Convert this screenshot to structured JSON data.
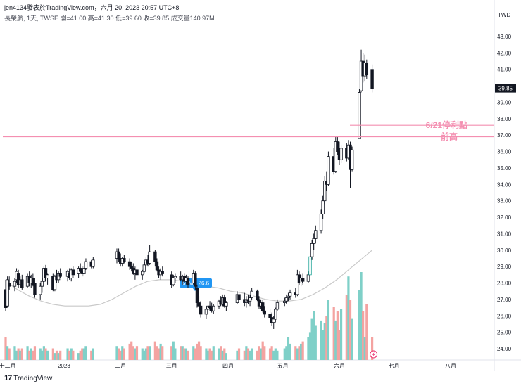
{
  "header": {
    "line1": "jen4134發表於TradingView.com，六月 20, 2023 20:57 UTC+8",
    "line2": "長榮航, 1天, TWSE  開=41.00  高=41.30  低=39.60  收=39.85  成交量140.97M"
  },
  "footer": {
    "logo_text": "TradingView",
    "logo_mark": "17"
  },
  "colors": {
    "up": "#26a69a",
    "down": "#ef5350",
    "bull_body": "#ffffff",
    "bear_body": "#131722",
    "ma": "#c9c9c9",
    "annotation": "#f48fb1",
    "ma_badge": "#2196f3"
  },
  "chart_data": {
    "type": "candlestick",
    "currency": "TWD",
    "y_axis": {
      "ticks": [
        "43.00",
        "42.00",
        "41.00",
        "40.00",
        "39.00",
        "38.00",
        "37.00",
        "36.00",
        "35.00",
        "34.00",
        "33.00",
        "32.00",
        "31.00",
        "30.00",
        "29.00",
        "28.00",
        "27.00",
        "26.00",
        "25.00",
        "24.00"
      ],
      "range": [
        23.6,
        43.6
      ]
    },
    "x_axis": {
      "ticks": [
        "十二月",
        "2023",
        "二月",
        "三月",
        "四月",
        "五月",
        "六月",
        "七月",
        "八月"
      ]
    },
    "last_price": "39.85",
    "ma": {
      "label": "60MA 26.6",
      "values": [
        28.1,
        27.6,
        27.2,
        26.9,
        26.7,
        26.6,
        26.6,
        26.6,
        26.7,
        27.0,
        27.4,
        27.8,
        28.1,
        28.2,
        28.2,
        28.1,
        28.0,
        27.8,
        27.7,
        27.5,
        27.4,
        27.2,
        27.0,
        26.9,
        26.9,
        27.0,
        27.3,
        27.7,
        28.2,
        28.8,
        29.4,
        30.0
      ]
    },
    "candles": [
      {
        "t": "2022-11-30",
        "o": 27.6,
        "h": 28.2,
        "l": 26.3,
        "c": 26.5
      },
      {
        "t": "2022-12-01",
        "o": 26.6,
        "h": 28.4,
        "l": 26.5,
        "c": 28.2
      },
      {
        "t": "2022-12-02",
        "o": 28.0,
        "h": 28.4,
        "l": 27.6,
        "c": 27.8
      },
      {
        "t": "2022-12-05",
        "o": 27.8,
        "h": 28.3,
        "l": 27.5,
        "c": 28.1
      },
      {
        "t": "2022-12-06",
        "o": 28.2,
        "h": 28.9,
        "l": 28.0,
        "c": 28.7
      },
      {
        "t": "2022-12-07",
        "o": 28.6,
        "h": 28.8,
        "l": 27.7,
        "c": 27.9
      },
      {
        "t": "2022-12-08",
        "o": 27.9,
        "h": 28.4,
        "l": 27.7,
        "c": 28.2
      },
      {
        "t": "2022-12-09",
        "o": 28.2,
        "h": 28.5,
        "l": 27.6,
        "c": 27.7
      },
      {
        "t": "2022-12-12",
        "o": 27.8,
        "h": 28.6,
        "l": 27.7,
        "c": 28.4
      },
      {
        "t": "2022-12-13",
        "o": 28.4,
        "h": 28.7,
        "l": 27.8,
        "c": 28.0
      },
      {
        "t": "2022-12-14",
        "o": 28.0,
        "h": 28.5,
        "l": 27.7,
        "c": 28.3
      },
      {
        "t": "2022-12-15",
        "o": 28.3,
        "h": 28.6,
        "l": 27.8,
        "c": 27.9
      },
      {
        "t": "2022-12-16",
        "o": 28.0,
        "h": 28.3,
        "l": 27.1,
        "c": 27.3
      },
      {
        "t": "2022-12-19",
        "o": 27.3,
        "h": 28.0,
        "l": 27.0,
        "c": 27.8
      },
      {
        "t": "2022-12-20",
        "o": 27.8,
        "h": 28.3,
        "l": 27.4,
        "c": 28.1
      },
      {
        "t": "2022-12-21",
        "o": 28.1,
        "h": 29.0,
        "l": 28.0,
        "c": 28.9
      },
      {
        "t": "2022-12-22",
        "o": 28.9,
        "h": 29.1,
        "l": 28.1,
        "c": 28.3
      },
      {
        "t": "2022-12-23",
        "o": 28.3,
        "h": 28.6,
        "l": 27.9,
        "c": 28.5
      },
      {
        "t": "2022-12-26",
        "o": 28.4,
        "h": 28.6,
        "l": 27.5,
        "c": 27.6
      },
      {
        "t": "2022-12-27",
        "o": 27.6,
        "h": 28.5,
        "l": 27.5,
        "c": 28.4
      },
      {
        "t": "2022-12-28",
        "o": 28.4,
        "h": 28.8,
        "l": 28.0,
        "c": 28.2
      },
      {
        "t": "2022-12-29",
        "o": 28.2,
        "h": 28.7,
        "l": 28.0,
        "c": 28.6
      },
      {
        "t": "2022-12-30",
        "o": 28.6,
        "h": 28.9,
        "l": 28.3,
        "c": 28.4
      },
      {
        "t": "2023-01-03",
        "o": 28.4,
        "h": 28.8,
        "l": 28.1,
        "c": 28.7
      },
      {
        "t": "2023-01-04",
        "o": 28.6,
        "h": 28.9,
        "l": 28.2,
        "c": 28.3
      },
      {
        "t": "2023-01-05",
        "o": 28.3,
        "h": 28.9,
        "l": 28.1,
        "c": 28.8
      },
      {
        "t": "2023-01-06",
        "o": 28.8,
        "h": 29.0,
        "l": 28.3,
        "c": 28.5
      },
      {
        "t": "2023-01-09",
        "o": 28.6,
        "h": 29.0,
        "l": 28.3,
        "c": 28.9
      },
      {
        "t": "2023-01-10",
        "o": 28.9,
        "h": 29.2,
        "l": 28.6,
        "c": 28.7
      },
      {
        "t": "2023-01-11",
        "o": 28.7,
        "h": 29.0,
        "l": 28.4,
        "c": 28.6
      },
      {
        "t": "2023-01-12",
        "o": 28.6,
        "h": 29.0,
        "l": 28.4,
        "c": 28.9
      },
      {
        "t": "2023-01-13",
        "o": 28.9,
        "h": 29.5,
        "l": 28.8,
        "c": 29.3
      },
      {
        "t": "2023-01-16",
        "o": 29.3,
        "h": 29.4,
        "l": 28.9,
        "c": 29.0
      },
      {
        "t": "2023-01-17",
        "o": 29.0,
        "h": 29.6,
        "l": 28.9,
        "c": 29.4
      },
      {
        "t": "2023-01-30",
        "o": 29.5,
        "h": 30.1,
        "l": 29.2,
        "c": 29.9
      },
      {
        "t": "2023-01-31",
        "o": 29.9,
        "h": 30.1,
        "l": 29.3,
        "c": 29.5
      },
      {
        "t": "2023-02-01",
        "o": 29.5,
        "h": 29.8,
        "l": 29.0,
        "c": 29.2
      },
      {
        "t": "2023-02-02",
        "o": 29.2,
        "h": 29.6,
        "l": 29.0,
        "c": 29.5
      },
      {
        "t": "2023-02-03",
        "o": 29.5,
        "h": 29.7,
        "l": 29.2,
        "c": 29.3
      },
      {
        "t": "2023-02-06",
        "o": 29.3,
        "h": 29.5,
        "l": 28.8,
        "c": 29.0
      },
      {
        "t": "2023-02-07",
        "o": 29.0,
        "h": 29.3,
        "l": 28.7,
        "c": 28.9
      },
      {
        "t": "2023-02-08",
        "o": 28.9,
        "h": 29.2,
        "l": 28.5,
        "c": 28.6
      },
      {
        "t": "2023-02-09",
        "o": 28.6,
        "h": 29.0,
        "l": 28.2,
        "c": 28.8
      },
      {
        "t": "2023-02-10",
        "o": 28.8,
        "h": 29.1,
        "l": 28.4,
        "c": 28.5
      },
      {
        "t": "2023-02-13",
        "o": 28.5,
        "h": 28.8,
        "l": 28.2,
        "c": 28.7
      },
      {
        "t": "2023-02-14",
        "o": 28.7,
        "h": 29.3,
        "l": 28.6,
        "c": 29.1
      },
      {
        "t": "2023-02-15",
        "o": 29.1,
        "h": 29.6,
        "l": 28.9,
        "c": 29.4
      },
      {
        "t": "2023-02-16",
        "o": 29.4,
        "h": 29.7,
        "l": 29.0,
        "c": 29.2
      },
      {
        "t": "2023-02-17",
        "o": 29.2,
        "h": 30.3,
        "l": 29.1,
        "c": 29.9
      },
      {
        "t": "2023-02-20",
        "o": 29.9,
        "h": 30.0,
        "l": 29.0,
        "c": 29.3
      },
      {
        "t": "2023-02-21",
        "o": 29.3,
        "h": 29.5,
        "l": 28.7,
        "c": 28.8
      },
      {
        "t": "2023-02-22",
        "o": 28.8,
        "h": 29.0,
        "l": 28.3,
        "c": 28.5
      },
      {
        "t": "2023-02-23",
        "o": 28.5,
        "h": 28.9,
        "l": 28.2,
        "c": 28.7
      },
      {
        "t": "2023-02-24",
        "o": 28.7,
        "h": 29.0,
        "l": 28.4,
        "c": 28.6
      },
      {
        "t": "2023-03-01",
        "o": 28.5,
        "h": 28.7,
        "l": 27.7,
        "c": 27.9
      },
      {
        "t": "2023-03-02",
        "o": 27.9,
        "h": 28.5,
        "l": 27.8,
        "c": 28.3
      },
      {
        "t": "2023-03-03",
        "o": 28.3,
        "h": 28.6,
        "l": 28.0,
        "c": 28.4
      },
      {
        "t": "2023-03-06",
        "o": 28.4,
        "h": 28.7,
        "l": 28.1,
        "c": 28.2
      },
      {
        "t": "2023-03-07",
        "o": 28.2,
        "h": 28.5,
        "l": 27.9,
        "c": 28.4
      },
      {
        "t": "2023-03-08",
        "o": 28.4,
        "h": 28.6,
        "l": 28.0,
        "c": 28.1
      },
      {
        "t": "2023-03-09",
        "o": 28.1,
        "h": 28.5,
        "l": 27.9,
        "c": 28.3
      },
      {
        "t": "2023-03-10",
        "o": 28.3,
        "h": 28.4,
        "l": 27.7,
        "c": 27.9
      },
      {
        "t": "2023-03-13",
        "o": 28.0,
        "h": 28.8,
        "l": 27.9,
        "c": 28.6
      },
      {
        "t": "2023-03-14",
        "o": 28.6,
        "h": 28.7,
        "l": 27.6,
        "c": 27.8
      },
      {
        "t": "2023-03-15",
        "o": 27.7,
        "h": 27.9,
        "l": 26.5,
        "c": 26.8
      },
      {
        "t": "2023-03-16",
        "o": 26.8,
        "h": 27.2,
        "l": 26.4,
        "c": 26.6
      },
      {
        "t": "2023-03-17",
        "o": 26.6,
        "h": 26.9,
        "l": 25.9,
        "c": 26.1
      },
      {
        "t": "2023-03-20",
        "o": 26.1,
        "h": 26.6,
        "l": 25.8,
        "c": 26.4
      },
      {
        "t": "2023-03-21",
        "o": 26.4,
        "h": 26.8,
        "l": 26.1,
        "c": 26.6
      },
      {
        "t": "2023-03-22",
        "o": 26.6,
        "h": 26.9,
        "l": 26.3,
        "c": 26.5
      },
      {
        "t": "2023-03-23",
        "o": 26.5,
        "h": 26.8,
        "l": 26.2,
        "c": 26.3
      },
      {
        "t": "2023-03-24",
        "o": 26.3,
        "h": 26.7,
        "l": 26.1,
        "c": 26.6
      },
      {
        "t": "2023-03-27",
        "o": 26.6,
        "h": 27.0,
        "l": 26.4,
        "c": 26.9
      },
      {
        "t": "2023-03-28",
        "o": 26.9,
        "h": 27.2,
        "l": 26.6,
        "c": 26.7
      },
      {
        "t": "2023-03-29",
        "o": 26.7,
        "h": 27.3,
        "l": 26.6,
        "c": 27.1
      },
      {
        "t": "2023-03-30",
        "o": 27.1,
        "h": 27.3,
        "l": 26.5,
        "c": 26.6
      },
      {
        "t": "2023-03-31",
        "o": 26.6,
        "h": 26.9,
        "l": 26.3,
        "c": 26.8
      },
      {
        "t": "2023-04-06",
        "o": 26.8,
        "h": 27.5,
        "l": 26.7,
        "c": 27.3
      },
      {
        "t": "2023-04-07",
        "o": 27.3,
        "h": 27.6,
        "l": 26.9,
        "c": 27.0
      },
      {
        "t": "2023-04-10",
        "o": 27.0,
        "h": 27.4,
        "l": 26.6,
        "c": 26.8
      },
      {
        "t": "2023-04-11",
        "o": 26.8,
        "h": 27.2,
        "l": 26.5,
        "c": 27.0
      },
      {
        "t": "2023-04-12",
        "o": 27.0,
        "h": 27.3,
        "l": 26.7,
        "c": 26.9
      },
      {
        "t": "2023-04-13",
        "o": 26.9,
        "h": 27.3,
        "l": 26.6,
        "c": 27.1
      },
      {
        "t": "2023-04-14",
        "o": 27.1,
        "h": 27.7,
        "l": 27.0,
        "c": 27.5
      },
      {
        "t": "2023-04-17",
        "o": 27.5,
        "h": 27.6,
        "l": 26.9,
        "c": 27.0
      },
      {
        "t": "2023-04-18",
        "o": 27.0,
        "h": 27.2,
        "l": 26.4,
        "c": 26.6
      },
      {
        "t": "2023-04-19",
        "o": 26.6,
        "h": 27.0,
        "l": 26.4,
        "c": 26.8
      },
      {
        "t": "2023-04-20",
        "o": 26.8,
        "h": 27.0,
        "l": 26.2,
        "c": 26.3
      },
      {
        "t": "2023-04-21",
        "o": 26.3,
        "h": 26.6,
        "l": 25.9,
        "c": 26.1
      },
      {
        "t": "2023-04-24",
        "o": 26.1,
        "h": 26.4,
        "l": 25.7,
        "c": 25.9
      },
      {
        "t": "2023-04-25",
        "o": 25.9,
        "h": 26.2,
        "l": 25.4,
        "c": 25.6
      },
      {
        "t": "2023-04-26",
        "o": 25.6,
        "h": 26.0,
        "l": 25.2,
        "c": 25.8
      },
      {
        "t": "2023-04-27",
        "o": 25.8,
        "h": 26.5,
        "l": 25.6,
        "c": 26.4
      },
      {
        "t": "2023-04-28",
        "o": 26.4,
        "h": 27.0,
        "l": 26.3,
        "c": 26.8
      },
      {
        "t": "2023-05-02",
        "o": 26.8,
        "h": 27.1,
        "l": 26.6,
        "c": 26.9
      },
      {
        "t": "2023-05-03",
        "o": 26.9,
        "h": 27.3,
        "l": 26.7,
        "c": 27.1
      },
      {
        "t": "2023-05-04",
        "o": 27.1,
        "h": 27.4,
        "l": 26.9,
        "c": 27.2
      },
      {
        "t": "2023-05-05",
        "o": 27.2,
        "h": 27.6,
        "l": 27.0,
        "c": 27.4
      },
      {
        "t": "2023-05-08",
        "o": 27.4,
        "h": 27.7,
        "l": 27.1,
        "c": 27.3
      },
      {
        "t": "2023-05-09",
        "o": 27.3,
        "h": 28.8,
        "l": 27.2,
        "c": 28.5
      },
      {
        "t": "2023-05-10",
        "o": 28.5,
        "h": 28.7,
        "l": 27.9,
        "c": 28.0
      },
      {
        "t": "2023-05-11",
        "o": 28.0,
        "h": 28.5,
        "l": 27.8,
        "c": 28.3
      },
      {
        "t": "2023-05-12",
        "o": 28.3,
        "h": 28.6,
        "l": 27.9,
        "c": 28.1
      },
      {
        "t": "2023-05-15",
        "o": 28.1,
        "h": 28.7,
        "l": 28.0,
        "c": 28.5
      },
      {
        "t": "2023-05-16",
        "o": 28.5,
        "h": 29.8,
        "l": 28.4,
        "c": 29.6
      },
      {
        "t": "2023-05-17",
        "o": 29.6,
        "h": 30.6,
        "l": 29.4,
        "c": 30.4
      },
      {
        "t": "2023-05-18",
        "o": 30.4,
        "h": 31.0,
        "l": 30.0,
        "c": 30.7
      },
      {
        "t": "2023-05-19",
        "o": 30.7,
        "h": 31.5,
        "l": 30.4,
        "c": 31.2
      },
      {
        "t": "2023-05-22",
        "o": 31.2,
        "h": 32.5,
        "l": 31.0,
        "c": 32.2
      },
      {
        "t": "2023-05-23",
        "o": 32.2,
        "h": 33.3,
        "l": 31.9,
        "c": 33.0
      },
      {
        "t": "2023-05-24",
        "o": 33.0,
        "h": 34.5,
        "l": 32.8,
        "c": 34.2
      },
      {
        "t": "2023-05-25",
        "o": 34.2,
        "h": 34.8,
        "l": 33.6,
        "c": 34.0
      },
      {
        "t": "2023-05-26",
        "o": 34.0,
        "h": 36.0,
        "l": 33.9,
        "c": 35.7
      },
      {
        "t": "2023-05-29",
        "o": 35.7,
        "h": 36.2,
        "l": 34.6,
        "c": 34.8
      },
      {
        "t": "2023-05-30",
        "o": 34.8,
        "h": 36.9,
        "l": 34.7,
        "c": 36.6
      },
      {
        "t": "2023-05-31",
        "o": 36.6,
        "h": 36.9,
        "l": 35.8,
        "c": 36.0
      },
      {
        "t": "2023-06-01",
        "o": 36.0,
        "h": 36.6,
        "l": 35.2,
        "c": 35.5
      },
      {
        "t": "2023-06-02",
        "o": 35.5,
        "h": 36.4,
        "l": 35.3,
        "c": 36.2
      },
      {
        "t": "2023-06-05",
        "o": 36.2,
        "h": 36.5,
        "l": 35.4,
        "c": 35.6
      },
      {
        "t": "2023-06-06",
        "o": 35.6,
        "h": 36.7,
        "l": 35.5,
        "c": 36.4
      },
      {
        "t": "2023-06-07",
        "o": 36.4,
        "h": 36.6,
        "l": 33.8,
        "c": 34.9
      },
      {
        "t": "2023-06-08",
        "o": 34.9,
        "h": 36.3,
        "l": 34.8,
        "c": 36.1
      },
      {
        "t": "2023-06-12",
        "o": 36.8,
        "h": 39.8,
        "l": 36.8,
        "c": 39.6
      },
      {
        "t": "2023-06-13",
        "o": 39.7,
        "h": 42.2,
        "l": 39.6,
        "c": 41.5
      },
      {
        "t": "2023-06-14",
        "o": 41.5,
        "h": 42.0,
        "l": 40.2,
        "c": 40.6
      },
      {
        "t": "2023-06-15",
        "o": 40.6,
        "h": 41.9,
        "l": 40.3,
        "c": 41.4
      },
      {
        "t": "2023-06-16",
        "o": 41.4,
        "h": 41.6,
        "l": 40.4,
        "c": 40.7
      },
      {
        "t": "2023-06-19",
        "o": 41.0,
        "h": 41.3,
        "l": 39.6,
        "c": 39.85
      }
    ],
    "annotations": [
      {
        "text": "6/21停利點",
        "price": 37.6
      },
      {
        "text": "前高",
        "price": 36.9
      }
    ]
  }
}
